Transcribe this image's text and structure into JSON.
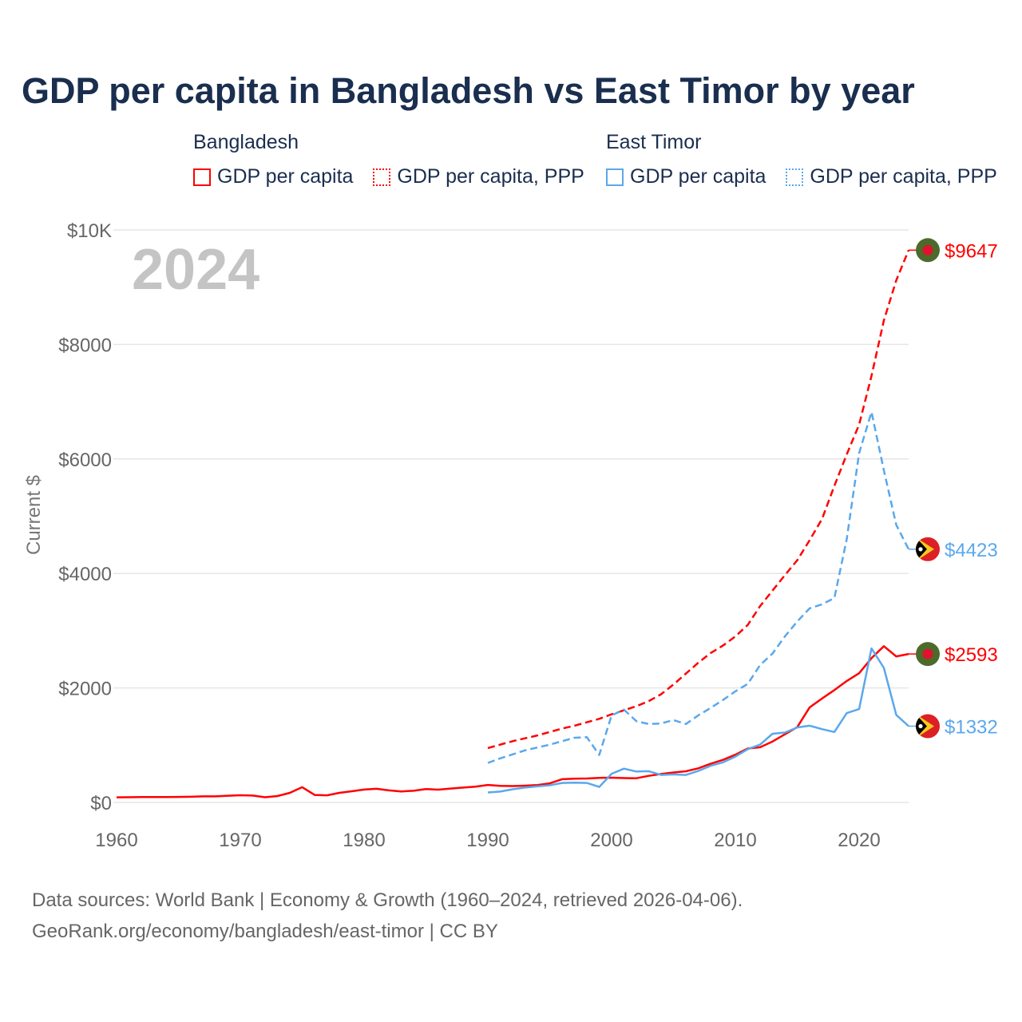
{
  "title": "GDP per capita in Bangladesh vs East Timor by year",
  "legend": {
    "groups": [
      {
        "name": "Bangladesh",
        "items": [
          "GDP per capita",
          "GDP per capita, PPP"
        ],
        "color": "#ff0000"
      },
      {
        "name": "East Timor",
        "items": [
          "GDP per capita",
          "GDP per capita, PPP"
        ],
        "color": "#5aa8ec"
      }
    ]
  },
  "year_watermark": "2024",
  "footer": {
    "line1": "Data sources: World Bank | Economy & Growth (1960–2024, retrieved 2026-04-06).",
    "line2": "GeoRank.org/economy/bangladesh/east-timor | CC BY"
  },
  "chart_data": {
    "type": "line",
    "title": "GDP per capita in Bangladesh vs East Timor by year",
    "xlabel": "",
    "ylabel": "Current $",
    "xlim": [
      1960,
      2024
    ],
    "ylim": [
      0,
      10000
    ],
    "x_ticks": [
      1960,
      1970,
      1980,
      1990,
      2000,
      2010,
      2020
    ],
    "x_tick_labels": [
      "1960",
      "1970",
      "1980",
      "1990",
      "2000",
      "2010",
      "2020"
    ],
    "y_ticks": [
      0,
      2000,
      4000,
      6000,
      8000,
      10000
    ],
    "y_tick_labels": [
      "$0",
      "$2000",
      "$4000",
      "$6000",
      "$8000",
      "$10K"
    ],
    "grid": true,
    "series": [
      {
        "name": "Bangladesh GDP per capita",
        "country": "Bangladesh",
        "color": "#ff0000",
        "dashed": false,
        "start": 1960,
        "end_label": "$2593",
        "values": [
          89,
          90,
          93,
          94,
          93,
          96,
          99,
          106,
          106,
          117,
          125,
          120,
          91,
          111,
          167,
          266,
          131,
          124,
          168,
          195,
          225,
          239,
          210,
          192,
          204,
          233,
          223,
          243,
          260,
          275,
          306,
          289,
          286,
          293,
          302,
          333,
          406,
          414,
          418,
          428,
          432,
          425,
          423,
          464,
          496,
          523,
          544,
          595,
          675,
          743,
          834,
          942,
          964,
          1064,
          1190,
          1315,
          1660,
          1815,
          1963,
          2122,
          2256,
          2520,
          2730,
          2551,
          2593
        ]
      },
      {
        "name": "Bangladesh GDP per capita, PPP",
        "country": "Bangladesh",
        "color": "#ff0000",
        "dashed": true,
        "start": 1990,
        "end_label": "$9647",
        "values": [
          950,
          1010,
          1070,
          1120,
          1170,
          1230,
          1290,
          1340,
          1400,
          1460,
          1540,
          1610,
          1680,
          1770,
          1890,
          2060,
          2250,
          2440,
          2610,
          2740,
          2900,
          3100,
          3430,
          3700,
          3970,
          4230,
          4580,
          4950,
          5530,
          6080,
          6600,
          7450,
          8420,
          9120,
          9647
        ]
      },
      {
        "name": "East Timor GDP per capita",
        "country": "East Timor",
        "color": "#5aa8ec",
        "dashed": false,
        "start": 1990,
        "end_label": "$1332",
        "values": [
          175,
          190,
          230,
          260,
          280,
          300,
          340,
          345,
          340,
          270,
          500,
          590,
          540,
          545,
          480,
          490,
          480,
          550,
          640,
          700,
          800,
          930,
          1010,
          1200,
          1220,
          1310,
          1340,
          1280,
          1230,
          1560,
          1630,
          2690,
          2350,
          1530,
          1332
        ]
      },
      {
        "name": "East Timor GDP per capita, PPP",
        "country": "East Timor",
        "color": "#5aa8ec",
        "dashed": true,
        "start": 1990,
        "end_label": "$4423",
        "values": [
          690,
          770,
          840,
          910,
          960,
          1010,
          1070,
          1130,
          1140,
          830,
          1520,
          1620,
          1420,
          1370,
          1380,
          1440,
          1370,
          1520,
          1650,
          1790,
          1940,
          2070,
          2400,
          2600,
          2900,
          3160,
          3390,
          3460,
          3570,
          4600,
          6100,
          6820,
          5800,
          4850,
          4423
        ]
      }
    ]
  }
}
